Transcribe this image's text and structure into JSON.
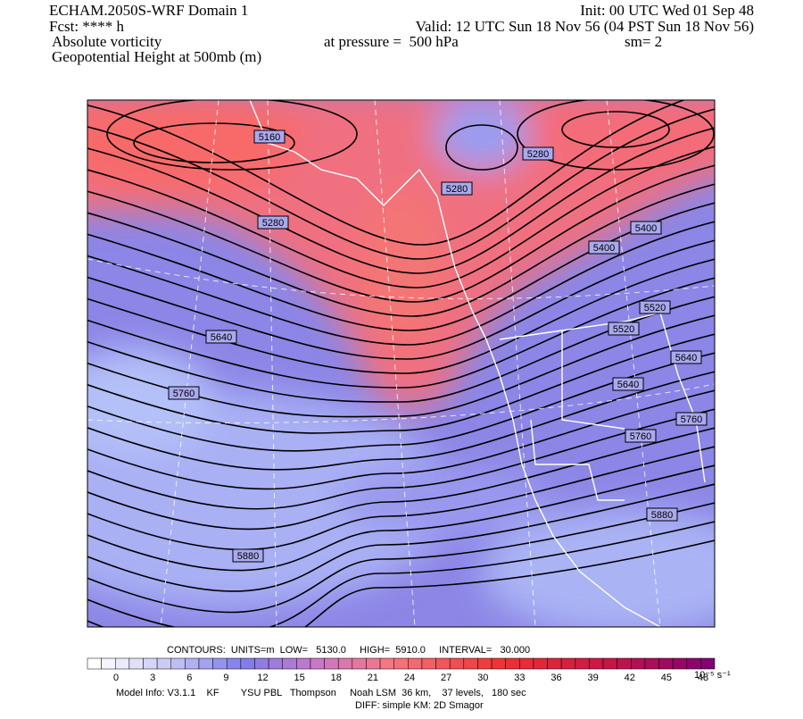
{
  "header": {
    "title": "ECHAM.2050S-WRF Domain 1",
    "forecast": "Fcst: **** h",
    "field1": "Absolute vorticity",
    "field2": "Geopotential Height at 500mb (m)",
    "init": "Init: 00 UTC Wed 01 Sep 48",
    "valid": "Valid: 12 UTC Sun 18 Nov 56 (04 PST Sun 18 Nov 56)",
    "pressure": "at pressure =  500 hPa",
    "smoothing": "sm= 2"
  },
  "contour_labels": [
    5160,
    5280,
    5280,
    5280,
    5400,
    5400,
    5520,
    5520,
    5640,
    5640,
    5640,
    5760,
    5760,
    5760,
    5880,
    5880
  ],
  "colorbar": {
    "ticks": [
      0,
      3,
      6,
      9,
      12,
      15,
      18,
      21,
      24,
      27,
      30,
      33,
      36,
      39,
      42,
      45,
      48
    ],
    "units": "10⁻⁵ s⁻¹"
  },
  "footer": {
    "contours": "CONTOURS:  UNITS=m  LOW=   5130.0     HIGH=  5910.0     INTERVAL=   30.000",
    "model_info": "Model Info: V3.1.1    KF        YSU PBL   Thompson     Noah LSM  36 km,    37 levels,   180 sec",
    "diff": "DIFF: simple KM: 2D Smagor"
  }
}
